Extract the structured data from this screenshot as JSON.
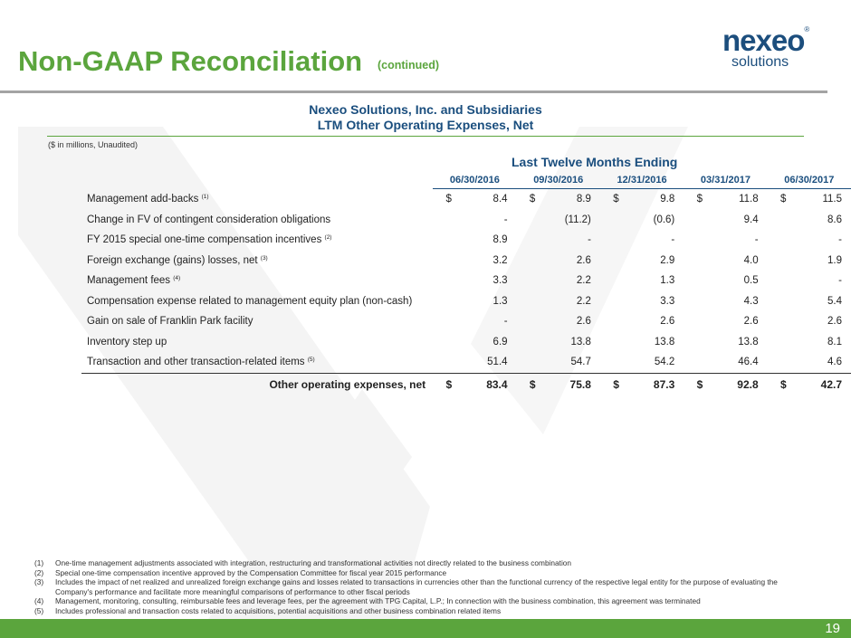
{
  "header": {
    "title": "Non-GAAP Reconciliation",
    "title_suffix": "(continued)",
    "logo_word": "nexeo",
    "logo_mark": "®",
    "logo_sub": "solutions"
  },
  "section": {
    "company": "Nexeo Solutions, Inc. and Subsidiaries",
    "subtitle": "LTM Other Operating Expenses, Net",
    "units": "($ in millions, Unaudited)",
    "period_label": "Last Twelve Months Ending"
  },
  "table": {
    "columns": [
      "06/30/2016",
      "09/30/2016",
      "12/31/2016",
      "03/31/2017",
      "06/30/2017"
    ],
    "rows": [
      {
        "label": "Management add-backs",
        "note": "(1)",
        "cells": [
          {
            "c": "$",
            "v": "8.4"
          },
          {
            "c": "$",
            "v": "8.9"
          },
          {
            "c": "$",
            "v": "9.8"
          },
          {
            "c": "$",
            "v": "11.8"
          },
          {
            "c": "$",
            "v": "11.5"
          }
        ]
      },
      {
        "label": "Change in FV of contingent consideration obligations",
        "note": "",
        "cells": [
          {
            "c": "",
            "v": "-"
          },
          {
            "c": "",
            "v": "(11.2)"
          },
          {
            "c": "",
            "v": "(0.6)"
          },
          {
            "c": "",
            "v": "9.4"
          },
          {
            "c": "",
            "v": "8.6"
          }
        ]
      },
      {
        "label": "FY 2015 special one-time compensation incentives",
        "note": "(2)",
        "cells": [
          {
            "c": "",
            "v": "8.9"
          },
          {
            "c": "",
            "v": "-"
          },
          {
            "c": "",
            "v": "-"
          },
          {
            "c": "",
            "v": "-"
          },
          {
            "c": "",
            "v": "-"
          }
        ]
      },
      {
        "label": "Foreign exchange (gains) losses, net",
        "note": "(3)",
        "cells": [
          {
            "c": "",
            "v": "3.2"
          },
          {
            "c": "",
            "v": "2.6"
          },
          {
            "c": "",
            "v": "2.9"
          },
          {
            "c": "",
            "v": "4.0"
          },
          {
            "c": "",
            "v": "1.9"
          }
        ]
      },
      {
        "label": "Management fees",
        "note": "(4)",
        "cells": [
          {
            "c": "",
            "v": "3.3"
          },
          {
            "c": "",
            "v": "2.2"
          },
          {
            "c": "",
            "v": "1.3"
          },
          {
            "c": "",
            "v": "0.5"
          },
          {
            "c": "",
            "v": "-"
          }
        ]
      },
      {
        "label": "Compensation expense related to management equity plan (non-cash)",
        "note": "",
        "cells": [
          {
            "c": "",
            "v": "1.3"
          },
          {
            "c": "",
            "v": "2.2"
          },
          {
            "c": "",
            "v": "3.3"
          },
          {
            "c": "",
            "v": "4.3"
          },
          {
            "c": "",
            "v": "5.4"
          }
        ]
      },
      {
        "label": "Gain on sale of Franklin Park facility",
        "note": "",
        "cells": [
          {
            "c": "",
            "v": "-"
          },
          {
            "c": "",
            "v": "2.6"
          },
          {
            "c": "",
            "v": "2.6"
          },
          {
            "c": "",
            "v": "2.6"
          },
          {
            "c": "",
            "v": "2.6"
          }
        ]
      },
      {
        "label": "Inventory step up",
        "note": "",
        "cells": [
          {
            "c": "",
            "v": "6.9"
          },
          {
            "c": "",
            "v": "13.8"
          },
          {
            "c": "",
            "v": "13.8"
          },
          {
            "c": "",
            "v": "13.8"
          },
          {
            "c": "",
            "v": "8.1"
          }
        ]
      },
      {
        "label": "Transaction and other transaction-related items",
        "note": "(5)",
        "cells": [
          {
            "c": "",
            "v": "51.4"
          },
          {
            "c": "",
            "v": "54.7"
          },
          {
            "c": "",
            "v": "54.2"
          },
          {
            "c": "",
            "v": "46.4"
          },
          {
            "c": "",
            "v": "4.6"
          }
        ]
      }
    ],
    "total": {
      "label": "Other operating expenses, net",
      "cells": [
        {
          "c": "$",
          "v": "83.4"
        },
        {
          "c": "$",
          "v": "75.8"
        },
        {
          "c": "$",
          "v": "87.3"
        },
        {
          "c": "$",
          "v": "92.8"
        },
        {
          "c": "$",
          "v": "42.7"
        }
      ]
    }
  },
  "footnotes": [
    {
      "num": "(1)",
      "text": "One-time management adjustments associated with integration, restructuring and transformational activities not directly related to the business combination"
    },
    {
      "num": "(2)",
      "text": "Special one-time compensation incentive approved by the Compensation Committee for fiscal year 2015 performance"
    },
    {
      "num": "(3)",
      "text": "Includes the impact of net realized and unrealized foreign exchange gains and losses related to transactions in currencies other than the functional currency of the respective legal entity for the purpose of evaluating the Company's performance and facilitate more meaningful comparisons of performance to other fiscal periods"
    },
    {
      "num": "(4)",
      "text": "Management, monitoring, consulting, reimbursable fees and leverage fees, per the agreement with TPG Capital, L.P.; In connection with the business combination, this agreement was terminated"
    },
    {
      "num": "(5)",
      "text": "Includes professional and transaction costs related to acquisitions, potential acquisitions and other business combination related items"
    }
  ],
  "footer": {
    "page_number": "19"
  },
  "colors": {
    "brand_green": "#5ba53d",
    "brand_blue": "#1a4e7e",
    "watermark": "#f3f3f3"
  }
}
